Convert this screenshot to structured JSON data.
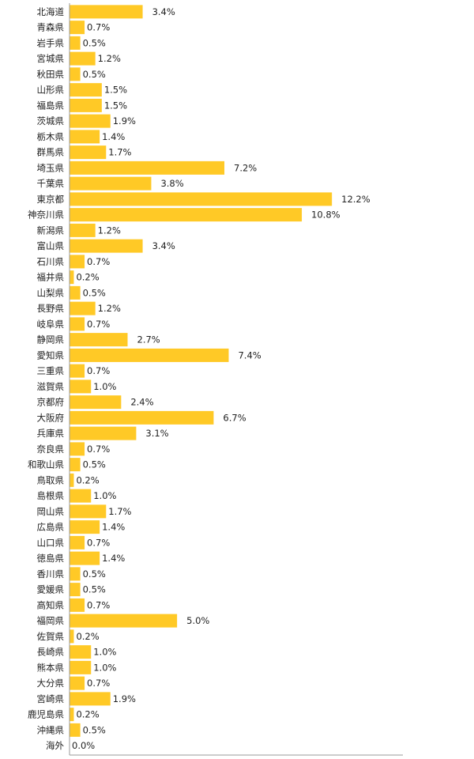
{
  "colors": {
    "bar": "#FFC926",
    "axis": "#9a9a9a",
    "text": "#222222",
    "background": "#ffffff"
  },
  "chart_data": {
    "type": "bar",
    "orientation": "horizontal",
    "title": "",
    "xlabel": "",
    "ylabel": "",
    "grid": false,
    "legend": "none",
    "xlim": [
      0,
      15.5
    ],
    "value_suffix": "%",
    "categories": [
      "北海道",
      "青森県",
      "岩手県",
      "宮城県",
      "秋田県",
      "山形県",
      "福島県",
      "茨城県",
      "栃木県",
      "群馬県",
      "埼玉県",
      "千葉県",
      "東京都",
      "神奈川県",
      "新潟県",
      "富山県",
      "石川県",
      "福井県",
      "山梨県",
      "長野県",
      "岐阜県",
      "静岡県",
      "愛知県",
      "三重県",
      "滋賀県",
      "京都府",
      "大阪府",
      "兵庫県",
      "奈良県",
      "和歌山県",
      "鳥取県",
      "島根県",
      "岡山県",
      "広島県",
      "山口県",
      "徳島県",
      "香川県",
      "愛媛県",
      "高知県",
      "福岡県",
      "佐賀県",
      "長崎県",
      "熊本県",
      "大分県",
      "宮崎県",
      "鹿児島県",
      "沖縄県",
      "海外"
    ],
    "values": [
      3.4,
      0.7,
      0.5,
      1.2,
      0.5,
      1.5,
      1.5,
      1.9,
      1.4,
      1.7,
      7.2,
      3.8,
      12.2,
      10.8,
      1.2,
      3.4,
      0.7,
      0.2,
      0.5,
      1.2,
      0.7,
      2.7,
      7.4,
      0.7,
      1.0,
      2.4,
      6.7,
      3.1,
      0.7,
      0.5,
      0.2,
      1.0,
      1.7,
      1.4,
      0.7,
      1.4,
      0.5,
      0.5,
      0.7,
      5.0,
      0.2,
      1.0,
      1.0,
      0.7,
      1.9,
      0.2,
      0.5,
      0.0
    ],
    "value_labels": [
      "3.4%",
      "0.7%",
      "0.5%",
      "1.2%",
      "0.5%",
      "1.5%",
      "1.5%",
      "1.9%",
      "1.4%",
      "1.7%",
      "7.2%",
      "3.8%",
      "12.2%",
      "10.8%",
      "1.2%",
      "3.4%",
      "0.7%",
      "0.2%",
      "0.5%",
      "1.2%",
      "0.7%",
      "2.7%",
      "7.4%",
      "0.7%",
      "1.0%",
      "2.4%",
      "6.7%",
      "3.1%",
      "0.7%",
      "0.5%",
      "0.2%",
      "1.0%",
      "1.7%",
      "1.4%",
      "0.7%",
      "1.4%",
      "0.5%",
      "0.5%",
      "0.7%",
      "5.0%",
      "0.2%",
      "1.0%",
      "1.0%",
      "0.7%",
      "1.9%",
      "0.2%",
      "0.5%",
      "0.0%"
    ]
  }
}
